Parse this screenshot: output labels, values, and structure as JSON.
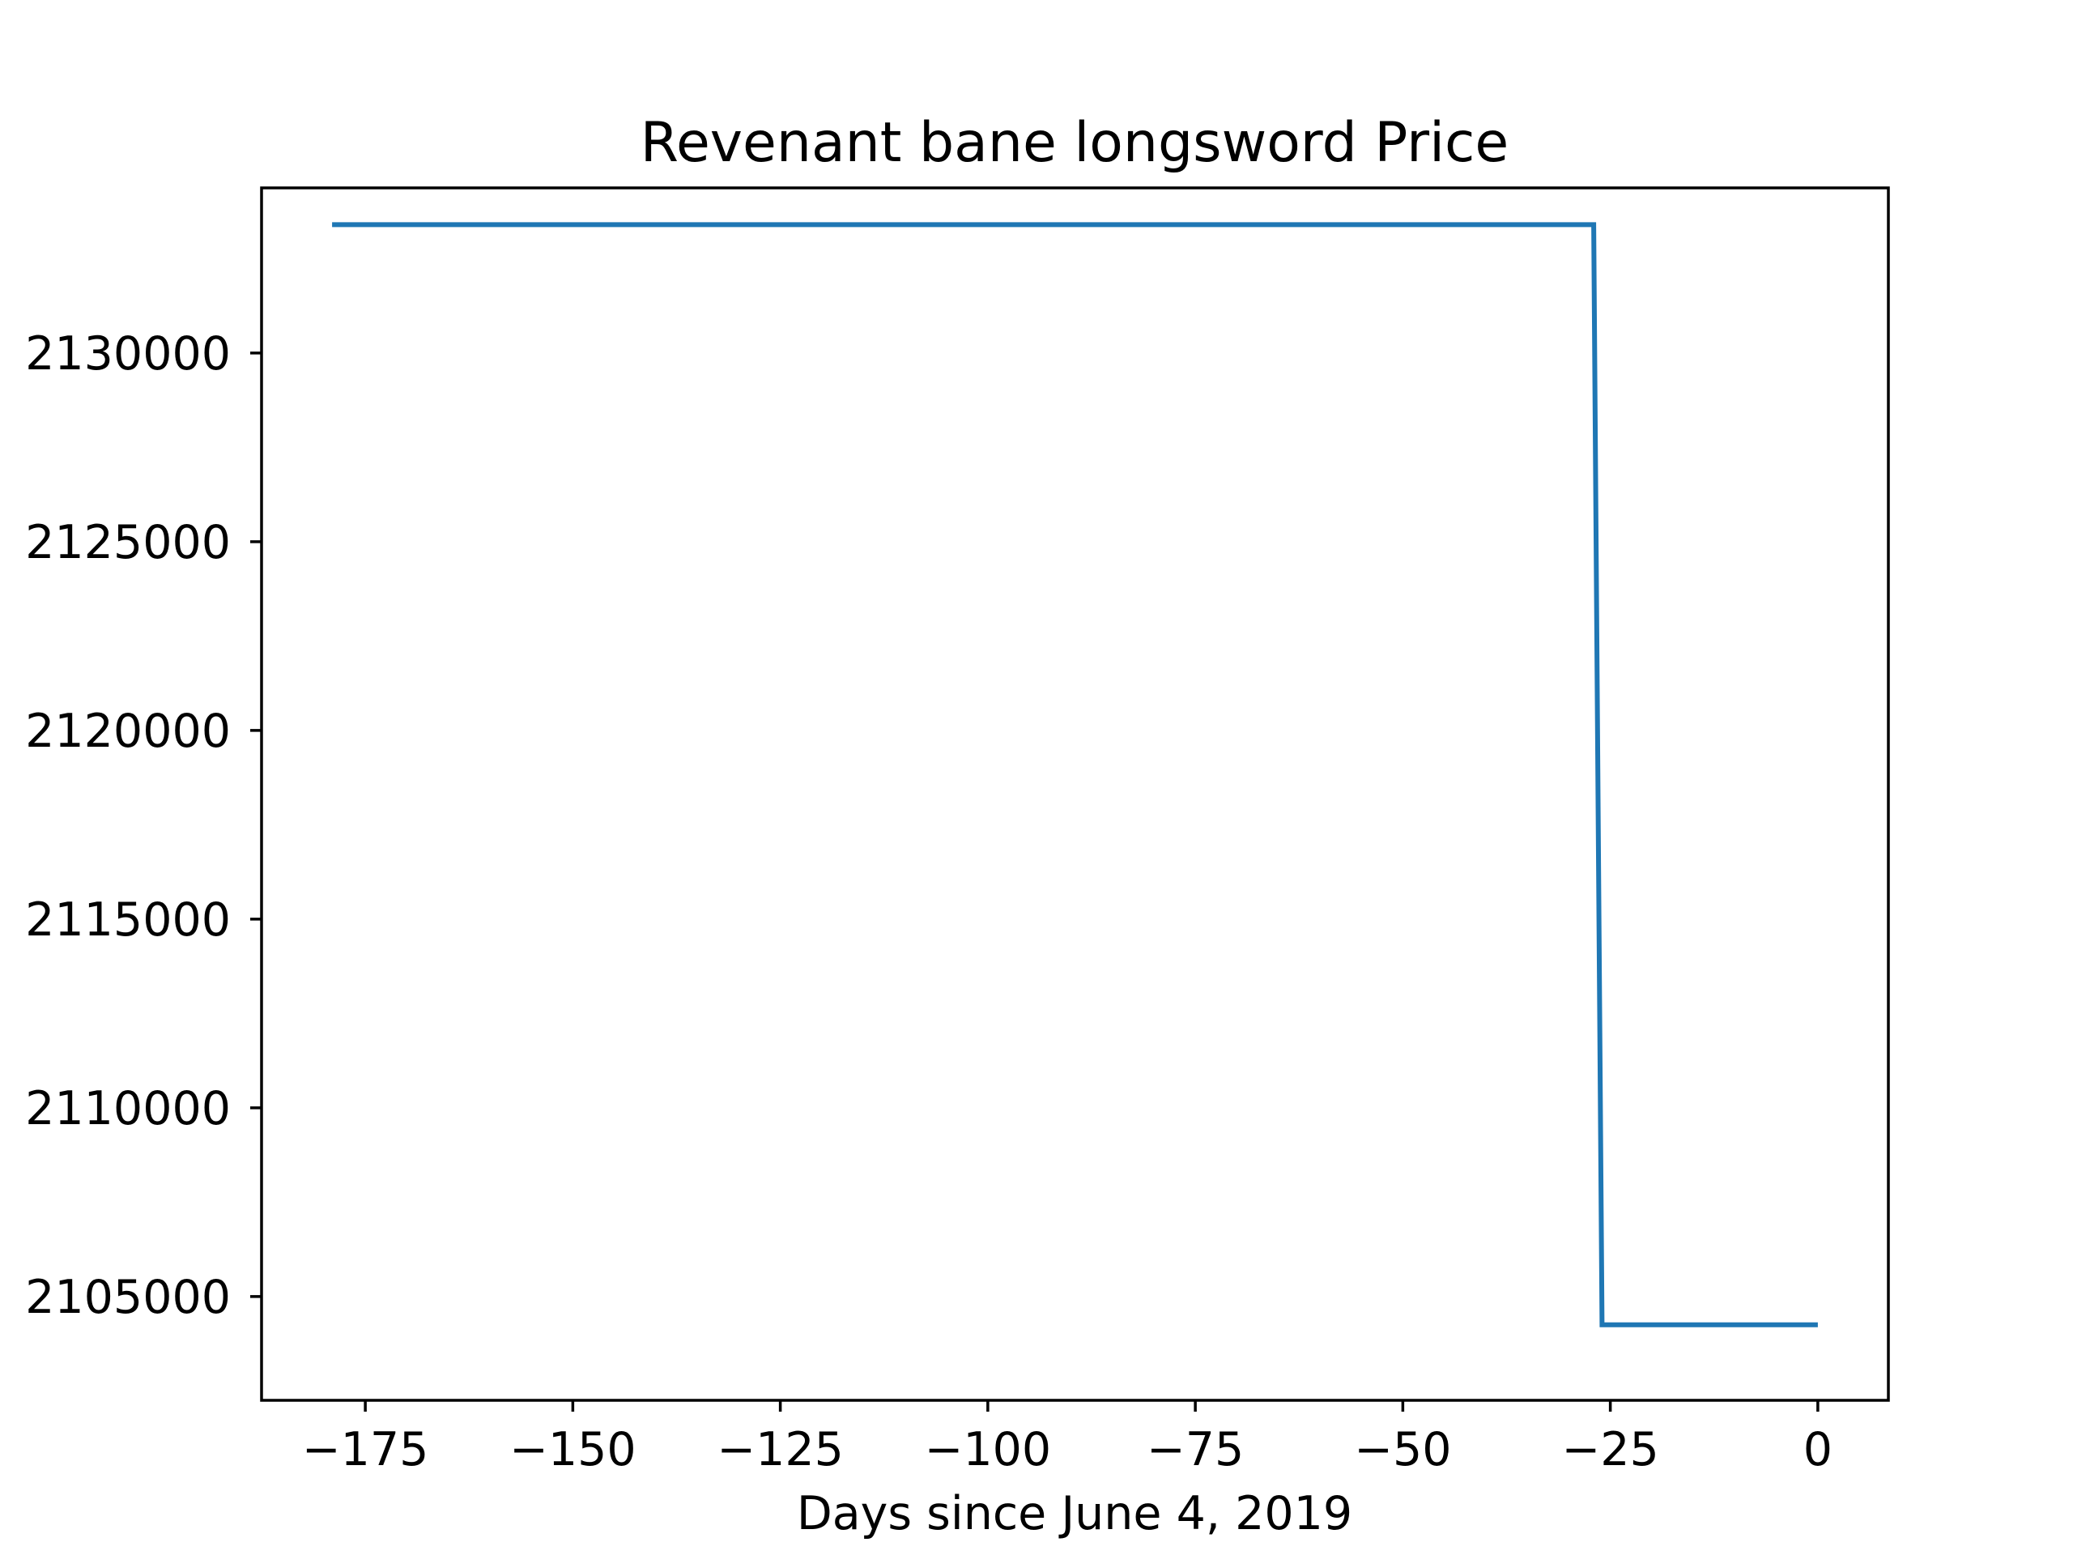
{
  "chart_data": {
    "type": "line",
    "title": "Revenant bane longsword Price",
    "xlabel": "Days since June 4, 2019",
    "ylabel": "",
    "xlim": [
      -187.5,
      8.5
    ],
    "ylim": [
      2102250,
      2134375
    ],
    "xticks": [
      -175,
      -150,
      -125,
      -100,
      -75,
      -50,
      -25,
      0
    ],
    "xtick_labels": [
      "−175",
      "−150",
      "−125",
      "−100",
      "−75",
      "−50",
      "−25",
      "0"
    ],
    "yticks": [
      2105000,
      2110000,
      2115000,
      2120000,
      2125000,
      2130000
    ],
    "ytick_labels": [
      "2105000",
      "2110000",
      "2115000",
      "2120000",
      "2125000",
      "2130000"
    ],
    "grid": false,
    "legend": false,
    "series": [
      {
        "color": "#1f77b4",
        "points": [
          [
            -179,
            2133400
          ],
          [
            -27,
            2133400
          ],
          [
            -26,
            2104250
          ],
          [
            0,
            2104250
          ]
        ]
      }
    ]
  }
}
